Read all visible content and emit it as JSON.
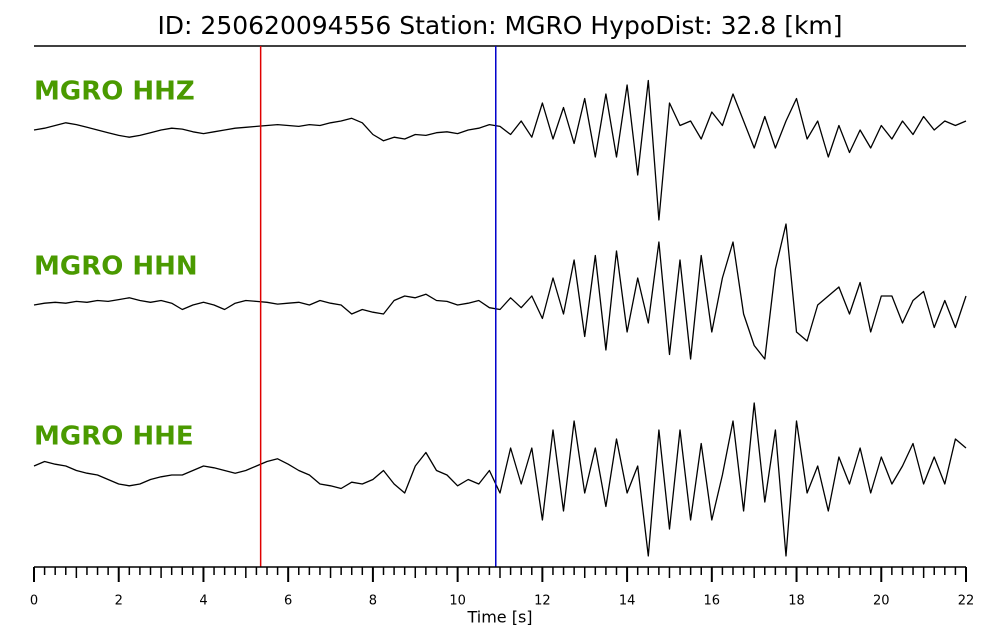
{
  "chart_data": {
    "type": "seismogram",
    "title": "ID: 250620094556   Station: MGRO   HypoDist:    32.8 [km]",
    "xlabel": "Time [s]",
    "xlim": [
      0,
      22
    ],
    "xticks": [
      0,
      2,
      4,
      6,
      8,
      10,
      12,
      14,
      16,
      18,
      20,
      22
    ],
    "xticks_minor": [
      0.25,
      0.5,
      0.75,
      1,
      1.25,
      1.5,
      1.75,
      2.25,
      2.5,
      2.75,
      3,
      3.25,
      3.5,
      3.75,
      4.25,
      4.5,
      4.75,
      5,
      5.25,
      5.5,
      5.75,
      6.25,
      6.5,
      6.75,
      7,
      7.25,
      7.5,
      7.75,
      8.25,
      8.5,
      8.75,
      9,
      9.25,
      9.5,
      9.75,
      10.25,
      10.5,
      10.75,
      11,
      11.25,
      11.5,
      11.75,
      12.25,
      12.5,
      12.75,
      13,
      13.25,
      13.5,
      13.75,
      14.25,
      14.5,
      14.75,
      15,
      15.25,
      15.5,
      15.75,
      16.25,
      16.5,
      16.75,
      17,
      17.25,
      17.5,
      17.75,
      18.25,
      18.5,
      18.75,
      19,
      19.25,
      19.5,
      19.75,
      20.25,
      20.5,
      20.75,
      21,
      21.25,
      21.5,
      21.75
    ],
    "ylim": [
      -1,
      1
    ],
    "label_color": "#4a9a00",
    "picks": [
      {
        "x": 5.35,
        "color": "#e00000"
      },
      {
        "x": 10.9,
        "color": "#0000cc"
      }
    ],
    "x": [
      0,
      0.25,
      0.5,
      0.75,
      1,
      1.25,
      1.5,
      1.75,
      2,
      2.25,
      2.5,
      2.75,
      3,
      3.25,
      3.5,
      3.75,
      4,
      4.25,
      4.5,
      4.75,
      5,
      5.25,
      5.5,
      5.75,
      6,
      6.25,
      6.5,
      6.75,
      7,
      7.25,
      7.5,
      7.75,
      8,
      8.25,
      8.5,
      8.75,
      9,
      9.25,
      9.5,
      9.75,
      10,
      10.25,
      10.5,
      10.75,
      11,
      11.25,
      11.5,
      11.75,
      12,
      12.25,
      12.5,
      12.75,
      13,
      13.25,
      13.5,
      13.75,
      14,
      14.25,
      14.5,
      14.75,
      15,
      15.25,
      15.5,
      15.75,
      16,
      16.25,
      16.5,
      16.75,
      17,
      17.25,
      17.5,
      17.75,
      18,
      18.25,
      18.5,
      18.75,
      19,
      19.25,
      19.5,
      19.75,
      20,
      20.25,
      20.5,
      20.75,
      21,
      21.25,
      21.5,
      21.75,
      22
    ],
    "series": [
      {
        "name": "MGRO HHZ",
        "color": "#000000",
        "values": [
          0,
          0.02,
          0.05,
          0.08,
          0.06,
          0.03,
          0,
          -0.03,
          -0.06,
          -0.08,
          -0.06,
          -0.03,
          0,
          0.02,
          0.01,
          -0.02,
          -0.04,
          -0.02,
          0,
          0.02,
          0.03,
          0.04,
          0.05,
          0.06,
          0.05,
          0.04,
          0.06,
          0.05,
          0.08,
          0.1,
          0.13,
          0.08,
          -0.05,
          -0.12,
          -0.08,
          -0.1,
          -0.05,
          -0.06,
          -0.03,
          -0.02,
          -0.04,
          0,
          0.02,
          0.06,
          0.04,
          -0.05,
          0.1,
          -0.08,
          0.3,
          -0.1,
          0.25,
          -0.15,
          0.35,
          -0.3,
          0.4,
          -0.3,
          0.5,
          -0.5,
          0.55,
          -1,
          0.3,
          0.05,
          0.1,
          -0.1,
          0.2,
          0.05,
          0.4,
          0.1,
          -0.2,
          0.15,
          -0.2,
          0.1,
          0.35,
          -0.1,
          0.1,
          -0.3,
          0.05,
          -0.25,
          0,
          -0.2,
          0.05,
          -0.1,
          0.1,
          -0.05,
          0.15,
          0,
          0.1,
          0.05,
          0.1
        ]
      },
      {
        "name": "MGRO HHN",
        "color": "#000000",
        "values": [
          0,
          0.02,
          0.03,
          0.02,
          0.04,
          0.03,
          0.05,
          0.04,
          0.06,
          0.08,
          0.05,
          0.03,
          0.05,
          0.02,
          -0.05,
          0,
          0.03,
          0,
          -0.05,
          0.02,
          0.05,
          0.04,
          0.03,
          0.01,
          0.02,
          0.03,
          0,
          0.05,
          0.02,
          0,
          -0.1,
          -0.05,
          -0.08,
          -0.1,
          0.05,
          0.1,
          0.08,
          0.12,
          0.05,
          0.04,
          0,
          0.02,
          0.05,
          -0.03,
          -0.05,
          0.08,
          -0.03,
          0.1,
          -0.15,
          0.3,
          -0.1,
          0.5,
          -0.35,
          0.55,
          -0.5,
          0.6,
          -0.3,
          0.3,
          -0.2,
          0.7,
          -0.55,
          0.5,
          -0.6,
          0.55,
          -0.3,
          0.3,
          0.7,
          -0.1,
          -0.45,
          -0.6,
          0.4,
          0.9,
          -0.3,
          -0.4,
          0,
          0.1,
          0.2,
          -0.1,
          0.25,
          -0.3,
          0.1,
          0.1,
          -0.2,
          0.05,
          0.15,
          -0.25,
          0.05,
          -0.25,
          0.1
        ]
      },
      {
        "name": "MGRO HHE",
        "color": "#000000",
        "values": [
          0.1,
          0.15,
          0.12,
          0.1,
          0.05,
          0.02,
          0,
          -0.05,
          -0.1,
          -0.12,
          -0.1,
          -0.05,
          -0.02,
          0,
          0,
          0.05,
          0.1,
          0.08,
          0.05,
          0.02,
          0.05,
          0.1,
          0.15,
          0.18,
          0.12,
          0.05,
          0,
          -0.1,
          -0.12,
          -0.15,
          -0.08,
          -0.1,
          -0.05,
          0.05,
          -0.1,
          -0.2,
          0.1,
          0.25,
          0.05,
          0,
          -0.12,
          -0.05,
          -0.1,
          0.05,
          -0.2,
          0.3,
          -0.1,
          0.3,
          -0.5,
          0.5,
          -0.4,
          0.6,
          -0.2,
          0.3,
          -0.35,
          0.4,
          -0.2,
          0.1,
          -0.9,
          0.5,
          -0.6,
          0.5,
          -0.5,
          0.35,
          -0.5,
          0,
          0.6,
          -0.4,
          0.8,
          -0.3,
          0.5,
          -0.9,
          0.6,
          -0.2,
          0.1,
          -0.4,
          0.2,
          -0.1,
          0.3,
          -0.2,
          0.2,
          -0.1,
          0.1,
          0.35,
          -0.1,
          0.2,
          -0.1,
          0.4,
          0.3
        ]
      }
    ]
  }
}
